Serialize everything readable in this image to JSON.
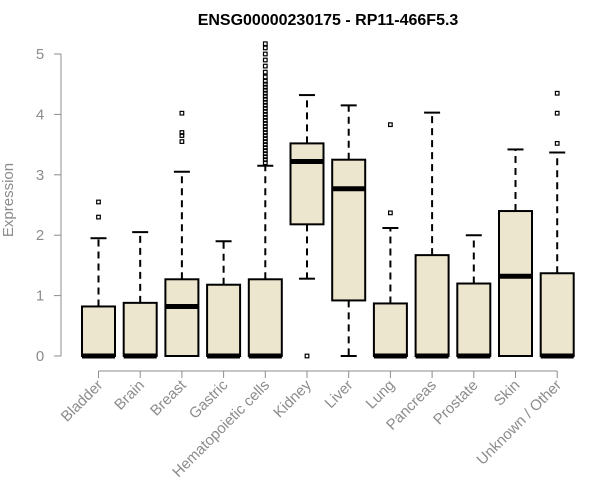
{
  "chart_data": {
    "type": "boxplot",
    "title": "ENSG00000230175 - RP11-466F5.3",
    "ylabel": "Expression",
    "ylim": [
      0,
      5.2
    ],
    "yticks": [
      "0",
      "1",
      "2",
      "3",
      "4",
      "5"
    ],
    "categories": [
      "Bladder",
      "Brain",
      "Breast",
      "Gastric",
      "Hematopoietic cells",
      "Kidney",
      "Liver",
      "Lung",
      "Pancreas",
      "Prostate",
      "Skin",
      "Unknown / Other"
    ],
    "boxes": [
      {
        "q1": 0,
        "median": 0,
        "q3": 0.82,
        "whisker_low": 0,
        "whisker_high": 1.95,
        "outliers": [
          2.3,
          2.55
        ]
      },
      {
        "q1": 0,
        "median": 0,
        "q3": 0.88,
        "whisker_low": 0,
        "whisker_high": 2.05,
        "outliers": []
      },
      {
        "q1": 0,
        "median": 0.82,
        "q3": 1.27,
        "whisker_low": 0,
        "whisker_high": 3.05,
        "outliers": [
          3.55,
          3.65,
          3.7,
          4.02
        ]
      },
      {
        "q1": 0,
        "median": 0,
        "q3": 1.18,
        "whisker_low": 0,
        "whisker_high": 1.9,
        "outliers": []
      },
      {
        "q1": 0,
        "median": 0,
        "q3": 1.27,
        "whisker_low": 0,
        "whisker_high": 3.15,
        "outliers": [
          3.2,
          3.25,
          3.3,
          3.35,
          3.4,
          3.45,
          3.5,
          3.55,
          3.6,
          3.65,
          3.7,
          3.75,
          3.8,
          3.85,
          3.9,
          3.95,
          4.0,
          4.05,
          4.1,
          4.15,
          4.2,
          4.25,
          4.3,
          4.35,
          4.4,
          4.45,
          4.5,
          4.55,
          4.62,
          4.7,
          4.8,
          4.9,
          5.0,
          5.1,
          5.17
        ]
      },
      {
        "q1": 2.18,
        "median": 3.22,
        "q3": 3.52,
        "whisker_low": 1.28,
        "whisker_high": 4.32,
        "outliers": [
          0
        ]
      },
      {
        "q1": 0.92,
        "median": 2.77,
        "q3": 3.25,
        "whisker_low": 0,
        "whisker_high": 4.15,
        "outliers": []
      },
      {
        "q1": 0,
        "median": 0,
        "q3": 0.87,
        "whisker_low": 0,
        "whisker_high": 2.12,
        "outliers": [
          2.37,
          3.83
        ]
      },
      {
        "q1": 0,
        "median": 0,
        "q3": 1.67,
        "whisker_low": 0,
        "whisker_high": 4.03,
        "outliers": []
      },
      {
        "q1": 0,
        "median": 0,
        "q3": 1.2,
        "whisker_low": 0,
        "whisker_high": 2.0,
        "outliers": []
      },
      {
        "q1": 0,
        "median": 1.32,
        "q3": 2.4,
        "whisker_low": 0,
        "whisker_high": 3.42,
        "outliers": []
      },
      {
        "q1": 0,
        "median": 0,
        "q3": 1.37,
        "whisker_low": 0,
        "whisker_high": 3.37,
        "outliers": [
          3.52,
          4.02,
          4.35
        ]
      }
    ],
    "colors": {
      "box_fill": "#ede6cf",
      "box_stroke": "#000000",
      "axis": "#8c8c8c",
      "title": "#000000"
    },
    "grid": false,
    "legend": "none"
  }
}
